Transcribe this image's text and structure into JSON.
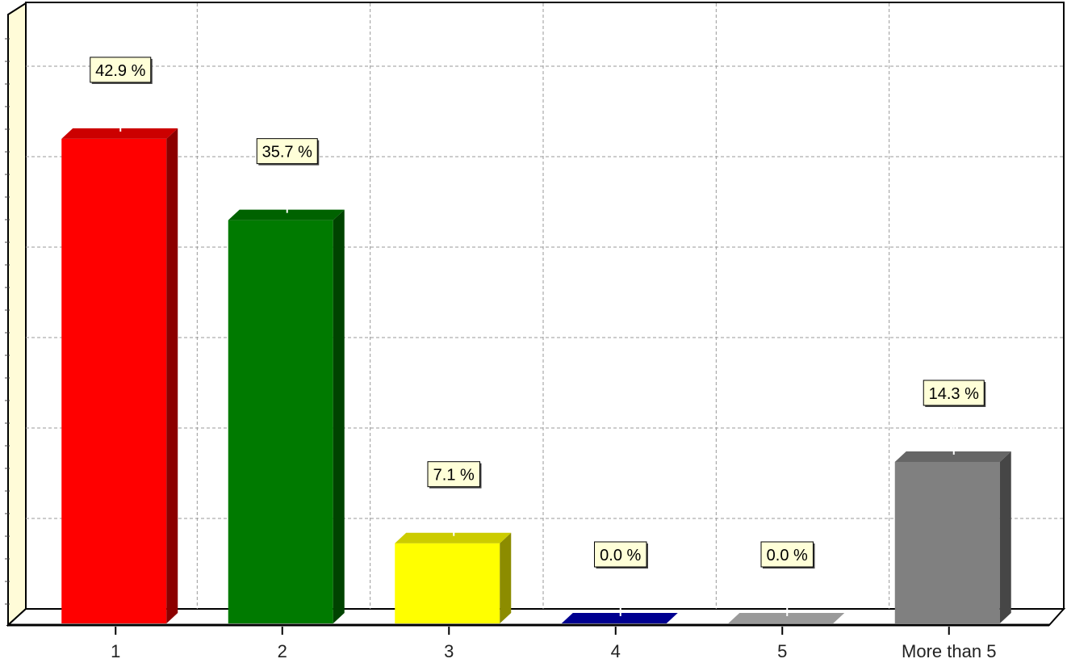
{
  "chart_data": {
    "type": "bar",
    "title": "",
    "xlabel": "",
    "ylabel": "",
    "categories": [
      "1",
      "2",
      "3",
      "4",
      "5",
      "More than 5"
    ],
    "values": [
      42.9,
      35.7,
      7.1,
      0.0,
      0.0,
      14.3
    ],
    "data_labels": [
      "42.9 %",
      "35.7 %",
      "7.1 %",
      "0.0 %",
      "0.0 %",
      "14.3 %"
    ],
    "colors": [
      "#ff0000",
      "#007a00",
      "#ffff00",
      "#0000b4",
      "#c0c0c0",
      "#808080"
    ],
    "ylim": [
      0,
      48
    ],
    "grid": true,
    "style": "3d"
  }
}
